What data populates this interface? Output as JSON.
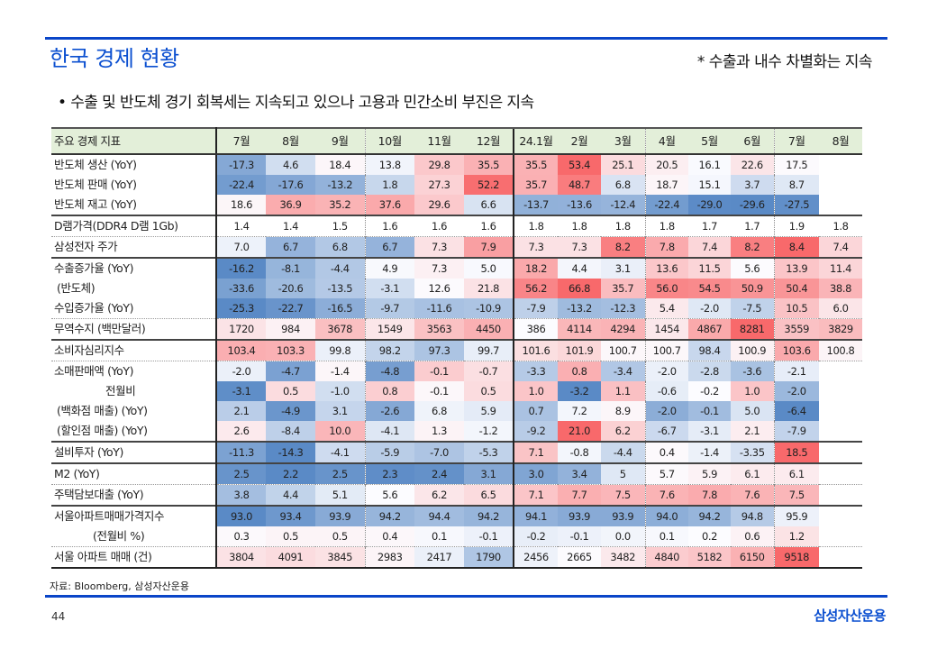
{
  "header": {
    "title": "한국 경제 현황",
    "subnote": "* 수출과 내수 차별화는 지속",
    "bullet": "• 수출 및 반도체 경기 회복세는 지속되고 있으나 고용과 민간소비 부진은 지속"
  },
  "colors": {
    "accent": "#0b4fd0",
    "scale_low": "#5a8ac6",
    "scale_mid": "#fcfcff",
    "scale_high": "#f8696b",
    "header_bg": "#e3efd9"
  },
  "table": {
    "corner_label": "주요 경제 지표",
    "columns": [
      "7월",
      "8월",
      "9월",
      "10월",
      "11월",
      "12월",
      "24.1월",
      "2월",
      "3월",
      "4월",
      "5월",
      "6월",
      "7월",
      "8월"
    ],
    "rows": [
      {
        "label": "반도체 생산 (YoY)",
        "values": [
          "-17.3",
          "4.6",
          "18.4",
          "13.8",
          "29.8",
          "35.5",
          "35.5",
          "53.4",
          "25.1",
          "20.5",
          "16.1",
          "22.6",
          "17.5",
          ""
        ],
        "scale": [
          -29.6,
          17,
          53.4
        ]
      },
      {
        "label": "반도체 판매 (YoY)",
        "values": [
          "-22.4",
          "-17.6",
          "-13.2",
          "1.8",
          "27.3",
          "52.2",
          "35.7",
          "48.7",
          "6.8",
          "18.7",
          "15.1",
          "3.7",
          "8.7",
          ""
        ],
        "scale": [
          -29.6,
          17,
          53.4
        ]
      },
      {
        "label": "반도체 재고 (YoY)",
        "values": [
          "18.6",
          "36.9",
          "35.2",
          "37.6",
          "29.6",
          "6.6",
          "-13.7",
          "-13.6",
          "-12.4",
          "-22.4",
          "-29.0",
          "-29.6",
          "-27.5",
          ""
        ],
        "scale": [
          -29.6,
          17,
          53.4
        ]
      },
      {
        "label": "D램가격(DDR4 D램 1Gb)",
        "values": [
          "1.4",
          "1.4",
          "1.5",
          "1.6",
          "1.6",
          "1.6",
          "1.8",
          "1.8",
          "1.8",
          "1.8",
          "1.7",
          "1.7",
          "1.9",
          "1.8"
        ],
        "scale": null
      },
      {
        "label": "삼성전자 주가",
        "values": [
          "7.0",
          "6.7",
          "6.8",
          "6.7",
          "7.3",
          "7.9",
          "7.3",
          "7.3",
          "8.2",
          "7.8",
          "7.4",
          "8.2",
          "8.4",
          "7.4"
        ],
        "scale": [
          6.5,
          7.05,
          8.4
        ]
      },
      {
        "label": "수출증가율 (YoY)",
        "values": [
          "-16.2",
          "-8.1",
          "-4.4",
          "4.9",
          "7.3",
          "5.0",
          "18.2",
          "4.4",
          "3.1",
          "13.6",
          "11.5",
          "5.6",
          "13.9",
          "11.4"
        ],
        "scale": [
          -16.2,
          5.5,
          28
        ]
      },
      {
        "label": "(반도체)",
        "values": [
          "-33.6",
          "-20.6",
          "-13.5",
          "-3.1",
          "12.6",
          "21.8",
          "56.2",
          "66.8",
          "35.7",
          "56.0",
          "54.5",
          "50.9",
          "50.4",
          "38.8"
        ],
        "scale": [
          -45,
          12,
          66.8
        ]
      },
      {
        "label": "수입증가율 (YoY)",
        "values": [
          "-25.3",
          "-22.7",
          "-16.5",
          "-9.7",
          "-11.6",
          "-10.9",
          "-7.9",
          "-13.2",
          "-12.3",
          "5.4",
          "-2.0",
          "-7.5",
          "10.5",
          "6.0"
        ],
        "scale": [
          -25.3,
          3,
          22
        ]
      },
      {
        "label": "무역수지 (백만달러)",
        "values": [
          "1720",
          "984",
          "3678",
          "1549",
          "3563",
          "4450",
          "386",
          "4114",
          "4294",
          "1454",
          "4867",
          "8281",
          "3559",
          "3829"
        ],
        "scale": [
          0,
          386,
          8281
        ]
      },
      {
        "label": "소비자심리지수",
        "values": [
          "103.4",
          "103.3",
          "99.8",
          "98.2",
          "97.3",
          "99.7",
          "101.6",
          "101.9",
          "100.7",
          "100.7",
          "98.4",
          "100.9",
          "103.6",
          "100.8"
        ],
        "scale": [
          94,
          100.5,
          106
        ]
      },
      {
        "label": "소매판매액 (YoY)",
        "values": [
          "-2.0",
          "-4.7",
          "-1.4",
          "-4.8",
          "-0.1",
          "-0.7",
          "-3.3",
          "0.8",
          "-3.4",
          "-2.0",
          "-2.8",
          "-3.6",
          "-2.1",
          ""
        ],
        "scale": [
          -5.5,
          -1.6,
          3
        ]
      },
      {
        "label": "전월비",
        "values": [
          "-3.1",
          "0.5",
          "-1.0",
          "0.8",
          "-0.1",
          "0.5",
          "1.0",
          "-3.2",
          "1.1",
          "-0.6",
          "-0.2",
          "1.0",
          "-2.0",
          ""
        ],
        "scale": [
          -3.2,
          -0.2,
          3
        ]
      },
      {
        "label": "(백화점 매출) (YoY)",
        "values": [
          "2.1",
          "-4.9",
          "3.1",
          "-2.6",
          "6.8",
          "5.9",
          "0.7",
          "7.2",
          "8.9",
          "-2.0",
          "-0.1",
          "5.0",
          "-6.4",
          ""
        ],
        "scale": [
          -6.4,
          8,
          30
        ]
      },
      {
        "label": "(할인점 매출) (YoY)",
        "values": [
          "2.6",
          "-8.4",
          "10.0",
          "-4.1",
          "1.3",
          "-1.2",
          "-9.2",
          "21.0",
          "6.2",
          "-6.7",
          "-3.1",
          "2.1",
          "-7.9",
          ""
        ],
        "scale": [
          -22,
          0,
          21
        ]
      },
      {
        "label": "설비투자 (YoY)",
        "values": [
          "-11.3",
          "-14.3",
          "-4.1",
          "-5.9",
          "-7.0",
          "-5.3",
          "7.1",
          "-0.8",
          "-4.4",
          "0.4",
          "-1.4",
          "-3.35",
          "18.5",
          ""
        ],
        "scale": [
          -14.3,
          0,
          18.5
        ]
      },
      {
        "label": "M2 (YoY)",
        "values": [
          "2.5",
          "2.2",
          "2.5",
          "2.3",
          "2.4",
          "3.1",
          "3.0",
          "3.4",
          "5",
          "5.7",
          "5.9",
          "6.1",
          "6.1",
          ""
        ],
        "scale": [
          2.2,
          5.6,
          10
        ]
      },
      {
        "label": "주택담보대출 (YoY)",
        "values": [
          "3.8",
          "4.4",
          "5.1",
          "5.6",
          "6.2",
          "6.5",
          "7.1",
          "7.7",
          "7.5",
          "7.6",
          "7.8",
          "7.6",
          "7.5",
          ""
        ],
        "scale": [
          2.3,
          5.6,
          9.6
        ]
      },
      {
        "label": "서울아파트매매가격지수",
        "values": [
          "93.0",
          "93.4",
          "93.9",
          "94.2",
          "94.4",
          "94.2",
          "94.1",
          "93.9",
          "93.9",
          "94.0",
          "94.2",
          "94.8",
          "95.9",
          ""
        ],
        "scale": [
          93,
          96.2,
          100
        ]
      },
      {
        "label": "(전월비 %)",
        "values": [
          "0.3",
          "0.5",
          "0.5",
          "0.4",
          "0.1",
          "-0.1",
          "-0.2",
          "-0.1",
          "0.0",
          "0.1",
          "0.2",
          "0.6",
          "1.2",
          ""
        ],
        "scale": [
          -3,
          0.2,
          6
        ]
      },
      {
        "label": "서울 아파트 매매 (건)",
        "values": [
          "3804",
          "4091",
          "3845",
          "2983",
          "2417",
          "1790",
          "2456",
          "2665",
          "3482",
          "4840",
          "5182",
          "6150",
          "9518",
          ""
        ],
        "scale": [
          900,
          2600,
          9518
        ]
      }
    ]
  },
  "source": "자료: Bloomberg, 삼성자산운용",
  "footer": {
    "page": "44",
    "brand": "삼성자산운용"
  }
}
